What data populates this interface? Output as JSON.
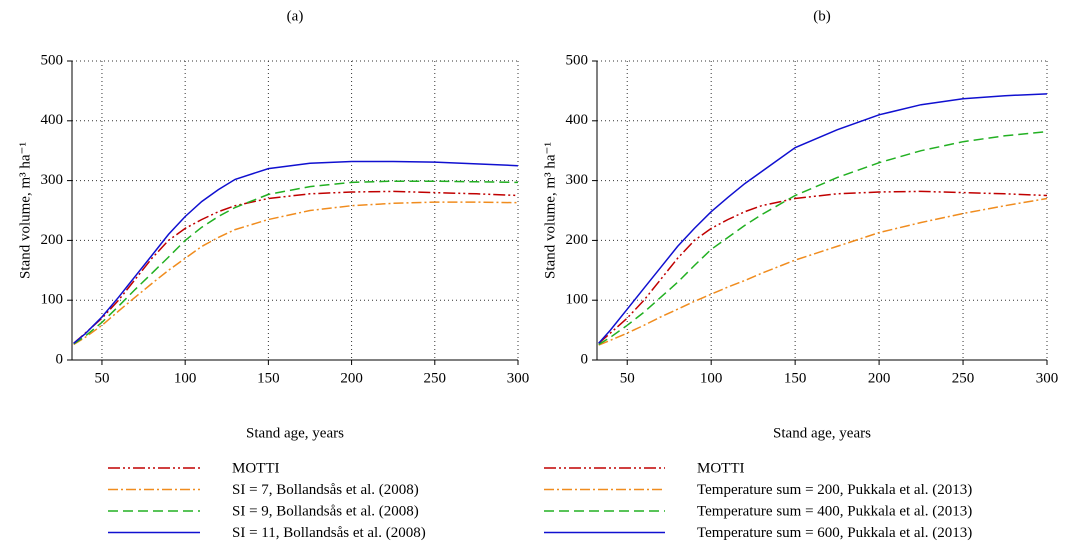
{
  "chart_data": [
    {
      "type": "line",
      "title": "(a)",
      "xlabel": "Stand age, years",
      "ylabel": "Stand volume, m³ ha⁻¹",
      "xlim": [
        32,
        300
      ],
      "ylim": [
        0,
        500
      ],
      "xticks": [
        50,
        100,
        150,
        200,
        250,
        300
      ],
      "yticks": [
        0,
        100,
        200,
        300,
        400,
        500
      ],
      "grid": true,
      "legend": "below",
      "x": [
        33,
        40,
        50,
        60,
        70,
        80,
        90,
        100,
        110,
        120,
        130,
        150,
        175,
        200,
        225,
        250,
        275,
        300
      ],
      "series": [
        {
          "name": "MOTTI",
          "color": "#c00000",
          "linestyle": "dash-dot-dot",
          "values": [
            28,
            45,
            70,
            100,
            135,
            170,
            200,
            220,
            235,
            248,
            258,
            270,
            278,
            281,
            282,
            280,
            278,
            275
          ]
        },
        {
          "name": "SI = 7, Bollandsås et al. (2008)",
          "color": "#f08c1e",
          "linestyle": "dash-dot",
          "values": [
            26,
            38,
            58,
            82,
            105,
            128,
            150,
            170,
            190,
            205,
            218,
            235,
            250,
            258,
            262,
            264,
            264,
            263
          ]
        },
        {
          "name": "SI = 9, Bollandsås et al. (2008)",
          "color": "#22b022",
          "linestyle": "dashed",
          "values": [
            27,
            40,
            63,
            90,
            118,
            145,
            172,
            200,
            222,
            240,
            255,
            277,
            290,
            297,
            299,
            299,
            298,
            297
          ]
        },
        {
          "name": "SI = 11, Bollandsås et al. (2008)",
          "color": "#1010d0",
          "linestyle": "solid",
          "values": [
            28,
            44,
            72,
            105,
            140,
            175,
            210,
            240,
            265,
            285,
            302,
            320,
            329,
            332,
            332,
            331,
            328,
            325
          ]
        }
      ]
    },
    {
      "type": "line",
      "title": "(b)",
      "xlabel": "Stand age, years",
      "ylabel": "Stand volume, m³ ha⁻¹",
      "xlim": [
        32,
        300
      ],
      "ylim": [
        0,
        500
      ],
      "xticks": [
        50,
        100,
        150,
        200,
        250,
        300
      ],
      "yticks": [
        0,
        100,
        200,
        300,
        400,
        500
      ],
      "grid": true,
      "legend": "below",
      "x": [
        33,
        40,
        50,
        60,
        70,
        80,
        90,
        100,
        110,
        120,
        130,
        150,
        175,
        200,
        225,
        250,
        275,
        300
      ],
      "series": [
        {
          "name": "MOTTI",
          "color": "#c00000",
          "linestyle": "dash-dot-dot",
          "values": [
            28,
            45,
            70,
            100,
            135,
            170,
            200,
            220,
            235,
            248,
            258,
            270,
            278,
            281,
            282,
            280,
            278,
            275
          ]
        },
        {
          "name": "Temperature sum = 200, Pukkala et al. (2013)",
          "color": "#f08c1e",
          "linestyle": "dash-dot",
          "values": [
            25,
            33,
            45,
            58,
            72,
            85,
            98,
            110,
            122,
            133,
            145,
            167,
            190,
            213,
            230,
            245,
            258,
            270
          ]
        },
        {
          "name": "Temperature sum = 400, Pukkala et al. (2013)",
          "color": "#22b022",
          "linestyle": "dashed",
          "values": [
            26,
            38,
            58,
            80,
            105,
            130,
            158,
            185,
            205,
            225,
            243,
            275,
            305,
            330,
            350,
            365,
            375,
            382
          ]
        },
        {
          "name": "Temperature sum = 600, Pukkala et al. (2013)",
          "color": "#1010d0",
          "linestyle": "solid",
          "values": [
            28,
            50,
            85,
            120,
            155,
            190,
            220,
            248,
            272,
            295,
            315,
            355,
            385,
            410,
            427,
            437,
            442,
            445
          ]
        }
      ]
    }
  ]
}
